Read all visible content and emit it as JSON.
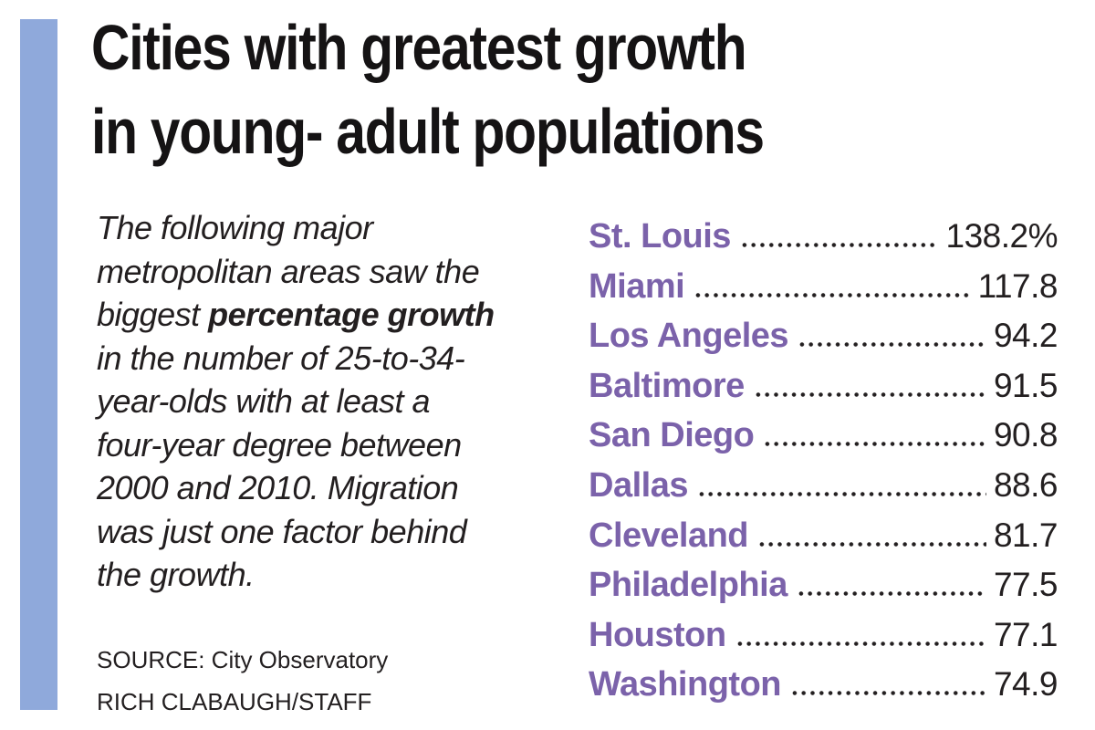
{
  "colors": {
    "accent_bar": "#8fa9db",
    "city_name": "#7b62aa",
    "ink": "#231f20"
  },
  "title": {
    "line1": "Cities with greatest growth",
    "line2": "in young- adult populations"
  },
  "description": {
    "lines": [
      [
        {
          "t": "The following major",
          "b": false
        }
      ],
      [
        {
          "t": "metropolitan areas saw the",
          "b": false
        }
      ],
      [
        {
          "t": "biggest ",
          "b": false
        },
        {
          "t": "percentage growth",
          "b": true
        }
      ],
      [
        {
          "t": "in the number of 25-to-34-",
          "b": false
        }
      ],
      [
        {
          "t": "year-olds with at least a",
          "b": false
        }
      ],
      [
        {
          "t": "four-year degree between",
          "b": false
        }
      ],
      [
        {
          "t": "2000 and 2010. Migration",
          "b": false
        }
      ],
      [
        {
          "t": "was just one factor behind",
          "b": false
        }
      ],
      [
        {
          "t": "the growth.",
          "b": false
        }
      ]
    ]
  },
  "source": {
    "source_line": "SOURCE: City Observatory",
    "credit_line": "RICH CLABAUGH/STAFF"
  },
  "list": {
    "rows": [
      {
        "city": "St. Louis",
        "value": "138.2%"
      },
      {
        "city": "Miami",
        "value": "117.8"
      },
      {
        "city": "Los Angeles",
        "value": "94.2"
      },
      {
        "city": "Baltimore",
        "value": "91.5"
      },
      {
        "city": "San Diego",
        "value": "90.8"
      },
      {
        "city": "Dallas",
        "value": "88.6"
      },
      {
        "city": "Cleveland",
        "value": "81.7"
      },
      {
        "city": "Philadelphia",
        "value": "77.5"
      },
      {
        "city": "Houston",
        "value": "77.1"
      },
      {
        "city": "Washington",
        "value": "74.9"
      }
    ]
  },
  "chart_data": {
    "type": "table",
    "title": "Cities with greatest growth in young- adult populations",
    "categories": [
      "St. Louis",
      "Miami",
      "Los Angeles",
      "Baltimore",
      "San Diego",
      "Dallas",
      "Cleveland",
      "Philadelphia",
      "Houston",
      "Washington"
    ],
    "values": [
      138.2,
      117.8,
      94.2,
      91.5,
      90.8,
      88.6,
      81.7,
      77.5,
      77.1,
      74.9
    ],
    "unit": "%",
    "note": "Percentage growth in number of 25-to-34-year-olds with at least a four-year degree between 2000 and 2010",
    "source": "City Observatory",
    "credit": "RICH CLABAUGH/STAFF",
    "legend_position": "none",
    "grid": false
  }
}
